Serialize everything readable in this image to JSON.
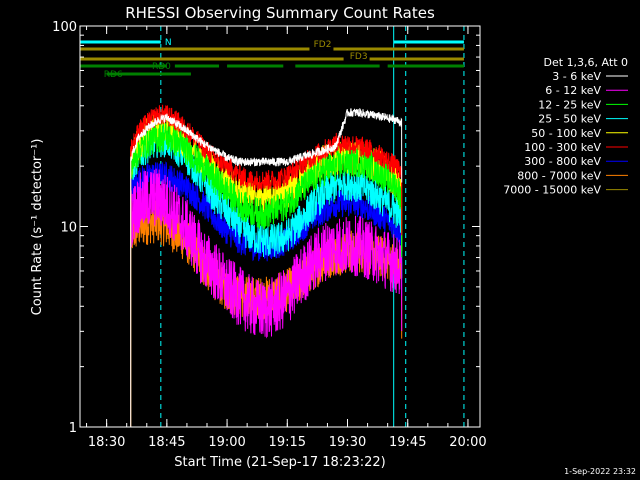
{
  "chart_data": {
    "type": "line",
    "title": "RHESSI Observing Summary Count Rates",
    "xlabel": "Start Time (21-Sep-17 18:23:22)",
    "ylabel": "Count Rate (s⁻¹ detector⁻¹)",
    "yscale": "log",
    "xlim": [
      "18:23:22",
      "20:03:00"
    ],
    "ylim": [
      1,
      100
    ],
    "x_ticks": [
      "18:30",
      "18:45",
      "19:00",
      "19:15",
      "19:30",
      "19:45",
      "20:00"
    ],
    "y_ticks": [
      "1",
      "10",
      "100"
    ],
    "footer": "1-Sep-2022 23:32",
    "legend": {
      "title": "Det 1,3,6, Att 0",
      "placement": "right"
    },
    "series": [
      {
        "name": "3 - 6 keV",
        "color": "#ffffff",
        "x": [
          "18:36",
          "18:38",
          "18:41",
          "18:43",
          "18:45",
          "18:48",
          "18:51",
          "18:54",
          "18:57",
          "19:00",
          "19:03",
          "19:06",
          "19:09",
          "19:12",
          "19:15",
          "19:18",
          "19:21",
          "19:24",
          "19:27",
          "19:30",
          "19:33",
          "19:36",
          "19:39",
          "19:42",
          "19:43:30"
        ],
        "y": [
          22,
          28,
          32,
          34,
          35,
          32,
          29,
          26,
          24,
          22,
          21,
          21,
          21,
          21,
          21,
          22,
          23,
          24,
          25,
          37,
          37,
          36,
          35,
          34,
          33
        ]
      },
      {
        "name": "6 - 12 keV",
        "color": "#ff00ff",
        "x": [
          "18:36",
          "18:38",
          "18:41",
          "18:43",
          "18:45",
          "18:48",
          "18:51",
          "18:54",
          "18:57",
          "19:00",
          "19:03",
          "19:06",
          "19:09",
          "19:12",
          "19:15",
          "19:18",
          "19:21",
          "19:24",
          "19:27",
          "19:30",
          "19:33",
          "19:36",
          "19:39",
          "19:42",
          "19:43:30"
        ],
        "y": [
          11,
          13,
          14,
          14,
          13,
          11,
          9,
          7,
          6,
          5,
          4.5,
          4,
          3.8,
          4,
          4.5,
          5.5,
          6.5,
          7.5,
          8,
          8,
          8,
          7.5,
          7,
          6.5,
          6
        ]
      },
      {
        "name": "12 - 25 keV",
        "color": "#00ff00",
        "x": [
          "18:36",
          "18:38",
          "18:41",
          "18:43",
          "18:45",
          "18:48",
          "18:51",
          "18:54",
          "18:57",
          "19:00",
          "19:03",
          "19:06",
          "19:09",
          "19:12",
          "19:15",
          "19:18",
          "19:21",
          "19:24",
          "19:27",
          "19:30",
          "19:33",
          "19:36",
          "19:39",
          "19:42",
          "19:43:30"
        ],
        "y": [
          20,
          24,
          27,
          28,
          28,
          26,
          23,
          20,
          17,
          15,
          13,
          12,
          11.5,
          12,
          13,
          15,
          17,
          19,
          20,
          21,
          21,
          20,
          18,
          16,
          14
        ]
      },
      {
        "name": "25 - 50 keV",
        "color": "#00ffff",
        "x": [
          "18:36",
          "18:38",
          "18:41",
          "18:43",
          "18:45",
          "18:48",
          "18:51",
          "18:54",
          "18:57",
          "19:00",
          "19:03",
          "19:06",
          "19:09",
          "19:12",
          "19:15",
          "19:18",
          "19:21",
          "19:24",
          "19:27",
          "19:30",
          "19:33",
          "19:36",
          "19:39",
          "19:42",
          "19:43:30"
        ],
        "y": [
          19,
          23,
          26,
          27,
          27,
          24,
          21,
          17,
          14,
          12,
          10,
          9,
          8.5,
          8.5,
          9,
          10.5,
          12.5,
          14.5,
          16,
          16.5,
          16,
          15,
          13.5,
          12,
          11
        ]
      },
      {
        "name": "50 - 100 keV",
        "color": "#ffff00",
        "x": [
          "18:36",
          "18:38",
          "18:41",
          "18:43",
          "18:45",
          "18:48",
          "18:51",
          "18:54",
          "18:57",
          "19:00",
          "19:03",
          "19:06",
          "19:09",
          "19:12",
          "19:15",
          "19:18",
          "19:21",
          "19:24",
          "19:27",
          "19:30",
          "19:33",
          "19:36",
          "19:39",
          "19:42",
          "19:43:30"
        ],
        "y": [
          21,
          26,
          30,
          31,
          31,
          28,
          25,
          22,
          19,
          17,
          15,
          14,
          14,
          14,
          15,
          17,
          19,
          21,
          22,
          22,
          22,
          21,
          19,
          17,
          15
        ]
      },
      {
        "name": "100 - 300 keV",
        "color": "#ff0000",
        "x": [
          "18:36",
          "18:38",
          "18:41",
          "18:43",
          "18:45",
          "18:48",
          "18:51",
          "18:54",
          "18:57",
          "19:00",
          "19:03",
          "19:06",
          "19:09",
          "19:12",
          "19:15",
          "19:18",
          "19:21",
          "19:24",
          "19:27",
          "19:30",
          "19:33",
          "19:36",
          "19:39",
          "19:42",
          "19:43:30"
        ],
        "y": [
          24,
          30,
          34,
          36,
          36,
          33,
          29,
          25,
          22,
          20,
          18,
          17,
          17,
          17,
          18,
          20,
          22,
          24,
          26,
          26,
          25,
          24,
          22,
          20,
          18
        ]
      },
      {
        "name": "300 - 800 keV",
        "color": "#0000ff",
        "x": [
          "18:36",
          "18:38",
          "18:41",
          "18:43",
          "18:45",
          "18:48",
          "18:51",
          "18:54",
          "18:57",
          "19:00",
          "19:03",
          "19:06",
          "19:09",
          "19:12",
          "19:15",
          "19:18",
          "19:21",
          "19:24",
          "19:27",
          "19:30",
          "19:33",
          "19:36",
          "19:39",
          "19:42",
          "19:43:30"
        ],
        "y": [
          15,
          17,
          18,
          18,
          18,
          16.5,
          15,
          13,
          11,
          9.5,
          8.5,
          8,
          7.8,
          8,
          8.5,
          9.5,
          11,
          12,
          13,
          13,
          13,
          12,
          11,
          10,
          9
        ]
      },
      {
        "name": "800 - 7000 keV",
        "color": "#ff8000",
        "x": [
          "18:36",
          "18:38",
          "18:41",
          "18:43",
          "18:45",
          "18:48",
          "18:51",
          "18:54",
          "18:57",
          "19:00",
          "19:03",
          "19:06",
          "19:09",
          "19:12",
          "19:15",
          "19:18",
          "19:21",
          "19:24",
          "19:27",
          "19:30",
          "19:33",
          "19:36",
          "19:39",
          "19:42",
          "19:43:30"
        ],
        "y": [
          9,
          10,
          10.5,
          10.5,
          10,
          9,
          8,
          6.5,
          5.5,
          4.8,
          4.5,
          4.4,
          4.4,
          4.5,
          4.8,
          5.3,
          6,
          6.8,
          7.3,
          7.5,
          7.5,
          7.3,
          7,
          6.5,
          5.5
        ]
      },
      {
        "name": "7000 - 15000 keV",
        "color": "#9a8a00",
        "x": [],
        "y": []
      }
    ],
    "state_bars": [
      {
        "label": "N",
        "color": "#00ffff",
        "segments": [
          [
            "18:23:22",
            "18:43:30"
          ],
          [
            "19:41:30",
            "19:59:00"
          ]
        ]
      },
      {
        "label": "FD2",
        "color": "#9a8a00",
        "segments": [
          [
            "18:23:22",
            "19:59:00"
          ]
        ]
      },
      {
        "label": "FD3",
        "color": "#9a8a00",
        "segments": [
          [
            "18:23:22",
            "19:59:00"
          ]
        ]
      },
      {
        "label": "RD0",
        "color": "#008000",
        "segments": [
          [
            "18:23:22",
            "18:45:00"
          ],
          [
            "18:47:00",
            "18:58:00"
          ],
          [
            "19:00:00",
            "19:14:00"
          ],
          [
            "19:17:00",
            "19:38:00"
          ],
          [
            "19:40:00",
            "19:59:00"
          ]
        ]
      },
      {
        "label": "RD6",
        "color": "#008000",
        "segments": [
          [
            "18:30:00",
            "18:51:00"
          ]
        ]
      }
    ],
    "vertical_lines": [
      {
        "x": "18:43:30",
        "color": "#00ffff",
        "style": "dashed"
      },
      {
        "x": "19:41:30",
        "color": "#00ffff",
        "style": "solid"
      },
      {
        "x": "19:44:30",
        "color": "#00ffff",
        "style": "dashed"
      },
      {
        "x": "19:59:00",
        "color": "#00ffff",
        "style": "dashed"
      }
    ]
  }
}
